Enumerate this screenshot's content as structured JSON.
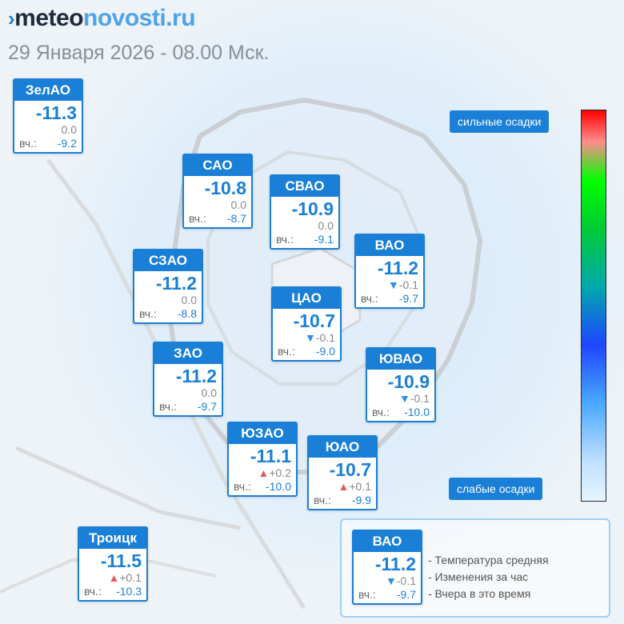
{
  "header": {
    "logo_part1": "meteo",
    "logo_part2": "novosti.ru",
    "date": "29 Января 2026 - 08.00 Мск."
  },
  "districts": [
    {
      "name": "ЗелАО",
      "temp": "-11.3",
      "change": "0.0",
      "trend": "none",
      "yest_label": "вч.:",
      "yesterday": "-9.2"
    },
    {
      "name": "САО",
      "temp": "-10.8",
      "change": "0.0",
      "trend": "none",
      "yest_label": "вч.:",
      "yesterday": "-8.7"
    },
    {
      "name": "СВАО",
      "temp": "-10.9",
      "change": "0.0",
      "trend": "none",
      "yest_label": "вч.:",
      "yesterday": "-9.1"
    },
    {
      "name": "ВАО",
      "temp": "-11.2",
      "change": "-0.1",
      "trend": "down",
      "yest_label": "вч.:",
      "yesterday": "-9.7"
    },
    {
      "name": "СЗАО",
      "temp": "-11.2",
      "change": "0.0",
      "trend": "none",
      "yest_label": "вч.:",
      "yesterday": "-8.8"
    },
    {
      "name": "ЦАО",
      "temp": "-10.7",
      "change": "-0.1",
      "trend": "down",
      "yest_label": "вч.:",
      "yesterday": "-9.0"
    },
    {
      "name": "ЗАО",
      "temp": "-11.2",
      "change": "0.0",
      "trend": "none",
      "yest_label": "вч.:",
      "yesterday": "-9.7"
    },
    {
      "name": "ЮВАО",
      "temp": "-10.9",
      "change": "-0.1",
      "trend": "down",
      "yest_label": "вч.:",
      "yesterday": "-10.0"
    },
    {
      "name": "ЮЗАО",
      "temp": "-11.1",
      "change": "+0.2",
      "trend": "up",
      "yest_label": "вч.:",
      "yesterday": "-10.0"
    },
    {
      "name": "ЮАО",
      "temp": "-10.7",
      "change": "+0.1",
      "trend": "up",
      "yest_label": "вч.:",
      "yesterday": "-9.9"
    },
    {
      "name": "Троицк",
      "temp": "-11.5",
      "change": "+0.1",
      "trend": "up",
      "yest_label": "вч.:",
      "yesterday": "-10.3"
    }
  ],
  "precip_scale": {
    "top_label": "сильные осадки",
    "bottom_label": "слабые осадки",
    "colors": [
      "#ff0000",
      "#00ff00",
      "#1e46ff",
      "#e8f4ff"
    ]
  },
  "legend": {
    "sample": {
      "name": "ВАО",
      "temp": "-11.2",
      "change": "-0.1",
      "trend": "down",
      "yest_label": "вч.:",
      "yesterday": "-9.7"
    },
    "line1": "- Температура средняя",
    "line2": "- Изменения за час",
    "line3": "- Вчера в это время"
  },
  "colors": {
    "accent": "#1a7fd6",
    "up": "#e05c63",
    "down": "#2e8de6"
  }
}
